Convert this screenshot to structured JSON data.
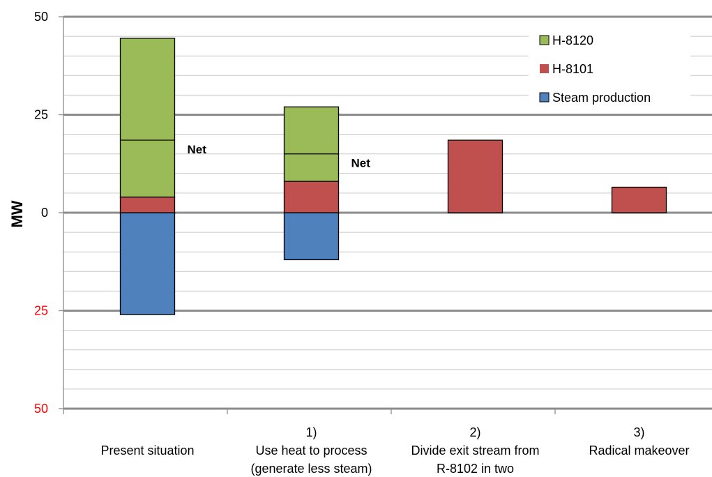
{
  "chart_data": {
    "type": "bar",
    "stacked": true,
    "ylabel": "MW",
    "ylim": [
      -50,
      50
    ],
    "yticks": [
      {
        "value": 50,
        "label": "50",
        "color": "#000000"
      },
      {
        "value": 25,
        "label": "25",
        "color": "#000000"
      },
      {
        "value": 0,
        "label": "0",
        "color": "#000000"
      },
      {
        "value": -25,
        "label": "25",
        "color": "#ff0000"
      },
      {
        "value": -50,
        "label": "50",
        "color": "#ff0000"
      }
    ],
    "minor_grid_step": 5,
    "major_grid_step": 25,
    "categories": [
      {
        "lines": [
          "Present situation"
        ]
      },
      {
        "lines": [
          "1)",
          "Use heat to process",
          "(generate less steam)"
        ]
      },
      {
        "lines": [
          "2)",
          "Divide exit stream from",
          "R-8102 in two"
        ]
      },
      {
        "lines": [
          "3)",
          "Radical makeover"
        ]
      }
    ],
    "series": [
      {
        "name": "Steam production",
        "color": "#4f81bd",
        "values": [
          -26,
          -12,
          0,
          0
        ]
      },
      {
        "name": "H-8101",
        "color": "#c0504d",
        "values": [
          4,
          8,
          18.5,
          6.5
        ]
      },
      {
        "name": "H-8120",
        "color": "#9bbb59",
        "values": [
          40.5,
          19,
          0,
          0
        ]
      }
    ],
    "legend": {
      "position": "top-right",
      "order": [
        "H-8120",
        "H-8101",
        "Steam production"
      ]
    },
    "net_markers": [
      {
        "category": 0,
        "value": 18.5,
        "label": "Net"
      },
      {
        "category": 1,
        "value": 15,
        "label": "Net"
      }
    ]
  }
}
